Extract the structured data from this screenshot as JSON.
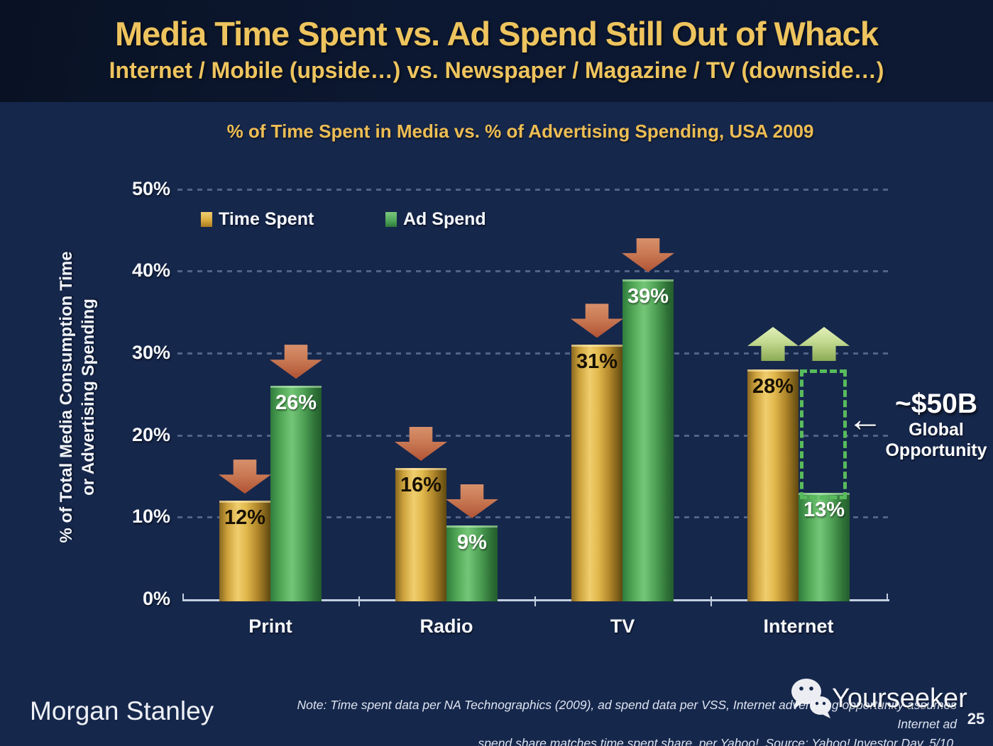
{
  "header": {
    "title": "Media Time Spent vs. Ad Spend Still Out of Whack",
    "subtitle": "Internet / Mobile (upside…) vs. Newspaper / Magazine / TV (downside…)"
  },
  "chart_data": {
    "type": "bar",
    "title": "% of Time Spent in Media vs. % of Advertising Spending, USA 2009",
    "ylabel_line1": "% of Total Media Consumption Time",
    "ylabel_line2": "or Advertising Spending",
    "ylim": [
      0,
      50
    ],
    "yticks": [
      0,
      10,
      20,
      30,
      40,
      50
    ],
    "grid": "dashed-horizontal",
    "legend_position": "top-left-inside",
    "categories": [
      "Print",
      "Radio",
      "TV",
      "Internet"
    ],
    "series": [
      {
        "name": "Time Spent",
        "values": [
          12,
          16,
          31,
          28
        ],
        "color": "#e0b54a"
      },
      {
        "name": "Ad Spend",
        "values": [
          26,
          9,
          39,
          13
        ],
        "color": "#55ab57"
      }
    ],
    "value_suffix": "%",
    "trend_arrows": [
      {
        "category": "Print",
        "direction": "down"
      },
      {
        "category": "Radio",
        "direction": "down"
      },
      {
        "category": "TV",
        "direction": "down"
      },
      {
        "category": "Internet",
        "direction": "up"
      }
    ],
    "annotation": {
      "headline": "~$50B",
      "line2": "Global",
      "line3": "Opportunity",
      "arrow_glyph": "←",
      "gap_box": {
        "category": "Internet",
        "series": "Ad Spend",
        "from_value": 13,
        "to_value": 28
      }
    }
  },
  "colors": {
    "background": "#16274c",
    "header_background": "#0c1831",
    "title_gold": "#eec45e",
    "chart_title_gold": "#edbd53",
    "time_spent_gold": "#e0b54a",
    "ad_spend_green": "#55ab57",
    "down_arrow_red": "#c26a44",
    "up_arrow_green": "#b5d079",
    "opportunity_dash_green": "#58bb5c",
    "text_white": "#ffffff"
  },
  "footer": {
    "brand": "Morgan Stanley",
    "note_line1": "Note: Time spent data per NA Technographics (2009), ad spend data per VSS, Internet advertising opportunity assumes Internet ad",
    "note_line2": "spend share matches time spent share, per Yahoo!. Source: Yahoo! Investor Day, 5/10.",
    "page_number": "25",
    "watermark": "Yourseeker"
  }
}
